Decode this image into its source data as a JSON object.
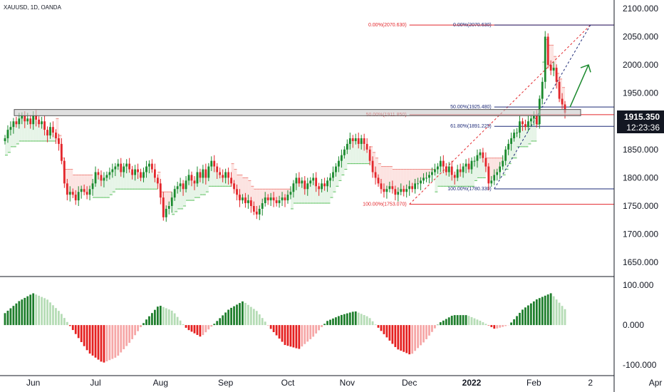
{
  "symbol_label": "XAUUSD, 1D, OANDA",
  "price_badge": {
    "price": "1915.350",
    "countdown": "12:23:36",
    "color": "#131722"
  },
  "colors": {
    "up": "#1b8a2e",
    "down": "#e3262b",
    "trail_up_fill": "#e6f4e7",
    "trail_down_fill": "#fce3e1",
    "trail_up_line": "#5bc15e",
    "trail_down_line": "#f08a84",
    "fib_line": "#1e2b78",
    "fib_red": "#e3262b",
    "zone_fill": "#c9c9c9",
    "arrow": "#1b8a2e",
    "osc_up_strong": "#1e7e2c",
    "osc_up_weak": "#b5dcb5",
    "osc_down_strong": "#e51f1f",
    "osc_down_weak": "#f6a7a7"
  },
  "chart_data": {
    "type": "candlestick",
    "x_axis_labels": [
      {
        "label": "Jun",
        "i": 10
      },
      {
        "label": "Jul",
        "i": 32
      },
      {
        "label": "Aug",
        "i": 55
      },
      {
        "label": "Sep",
        "i": 78
      },
      {
        "label": "Oct",
        "i": 100
      },
      {
        "label": "Nov",
        "i": 121
      },
      {
        "label": "Dec",
        "i": 143
      },
      {
        "label": "2022",
        "i": 165
      },
      {
        "label": "Feb",
        "i": 187
      },
      {
        "label": "2",
        "i": 207
      },
      {
        "label": "Apr",
        "i": 230
      }
    ],
    "price_axis": {
      "min": 1625,
      "max": 2115,
      "ticks": [
        "1650.000",
        "1700.000",
        "1750.000",
        "1800.000",
        "1850.000",
        "1900.000",
        "1950.000",
        "2000.000",
        "2050.000",
        "2100.000"
      ]
    },
    "osc_axis": {
      "min": -125,
      "max": 120,
      "ticks": [
        "100.000",
        "0.000",
        "-100.000"
      ]
    },
    "closes": [
      1870,
      1885,
      1890,
      1900,
      1895,
      1905,
      1910,
      1900,
      1905,
      1895,
      1910,
      1903,
      1895,
      1900,
      1885,
      1875,
      1890,
      1880,
      1870,
      1860,
      1830,
      1790,
      1770,
      1775,
      1770,
      1760,
      1775,
      1780,
      1775,
      1770,
      1780,
      1790,
      1810,
      1805,
      1795,
      1800,
      1805,
      1810,
      1815,
      1820,
      1825,
      1810,
      1820,
      1825,
      1815,
      1805,
      1815,
      1810,
      1800,
      1810,
      1820,
      1825,
      1815,
      1800,
      1790,
      1765,
      1730,
      1745,
      1750,
      1765,
      1780,
      1785,
      1790,
      1780,
      1795,
      1805,
      1795,
      1790,
      1810,
      1800,
      1815,
      1800,
      1820,
      1830,
      1820,
      1810,
      1805,
      1800,
      1810,
      1800,
      1790,
      1780,
      1770,
      1760,
      1765,
      1755,
      1760,
      1750,
      1740,
      1735,
      1745,
      1755,
      1765,
      1760,
      1765,
      1760,
      1755,
      1760,
      1765,
      1760,
      1770,
      1775,
      1790,
      1800,
      1790,
      1795,
      1780,
      1790,
      1795,
      1800,
      1785,
      1780,
      1790,
      1785,
      1795,
      1800,
      1810,
      1820,
      1830,
      1840,
      1850,
      1860,
      1870,
      1865,
      1870,
      1860,
      1870,
      1860,
      1850,
      1830,
      1810,
      1800,
      1790,
      1780,
      1775,
      1780,
      1785,
      1780,
      1770,
      1775,
      1780,
      1775,
      1780,
      1785,
      1780,
      1790,
      1790,
      1795,
      1800,
      1800,
      1805,
      1810,
      1815,
      1820,
      1830,
      1820,
      1810,
      1820,
      1805,
      1800,
      1815,
      1810,
      1820,
      1825,
      1815,
      1830,
      1830,
      1840,
      1845,
      1835,
      1820,
      1790,
      1795,
      1805,
      1810,
      1820,
      1830,
      1850,
      1860,
      1870,
      1880,
      1880,
      1900,
      1895,
      1890,
      1900,
      1905,
      1910,
      1895,
      1940,
      1970,
      2050,
      2000,
      1990,
      1995,
      1970,
      1940,
      1930,
      1915
    ],
    "fibonacci": {
      "levels": [
        {
          "text": "0.00%(2070.630)",
          "price": 2070.63
        },
        {
          "text": "50.00%(1925.480)",
          "price": 1925.48
        },
        {
          "text": "61.80%(1891.225)",
          "price": 1891.225
        },
        {
          "text": "100.00%(1780.330)",
          "price": 1780.33
        }
      ],
      "red_levels": [
        {
          "text": "0.00%(2070.630)",
          "price": 2070.63
        },
        {
          "text": "50.00%(1911.850)",
          "price": 1911.85
        },
        {
          "text": "100.00%(1753.070)",
          "price": 1753.07
        }
      ]
    },
    "zone": {
      "top": 1921,
      "bottom": 1910
    },
    "oscillator_amplitudes": [
      30,
      60,
      80,
      65,
      30,
      -20,
      -70,
      -95,
      -80,
      -40,
      10,
      50,
      35,
      -10,
      -30,
      5,
      40,
      60,
      35,
      -10,
      -50,
      -60,
      -30,
      10,
      25,
      35,
      20,
      -20,
      -60,
      -75,
      -40,
      5,
      25,
      25,
      10,
      -10,
      0,
      40,
      65,
      80,
      40
    ]
  }
}
